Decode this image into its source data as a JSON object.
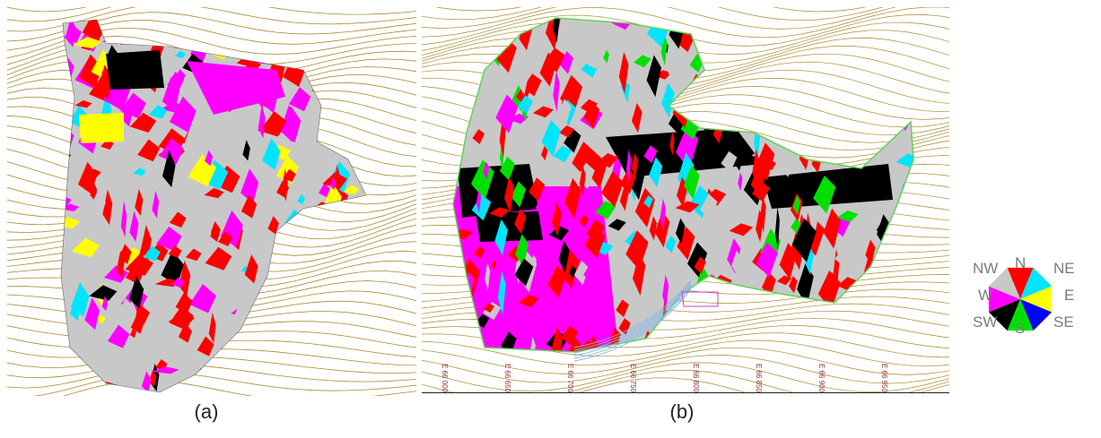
{
  "figure": {
    "captions": [
      "(a)",
      "(b)"
    ],
    "colors": {
      "contour": "#a88a2c",
      "outline_b": "#5fd35a",
      "river": "#7fb6e8"
    }
  },
  "legend": {
    "directions": [
      {
        "label": "N",
        "color": "#ff0000"
      },
      {
        "label": "NE",
        "color": "#00e5ff"
      },
      {
        "label": "E",
        "color": "#ffff00"
      },
      {
        "label": "SE",
        "color": "#0000ff"
      },
      {
        "label": "S",
        "color": "#00e000"
      },
      {
        "label": "SW",
        "color": "#000000"
      },
      {
        "label": "W",
        "color": "#ff00ff"
      },
      {
        "label": "NW",
        "color": "#c8c8c8"
      }
    ]
  },
  "panel_b": {
    "axis_ticks": [
      "E 66 000",
      "E 66 650",
      "E 66 700",
      "E 66 750",
      "E 66 800",
      "E 66 850",
      "E 66 900",
      "E 66 950"
    ]
  }
}
